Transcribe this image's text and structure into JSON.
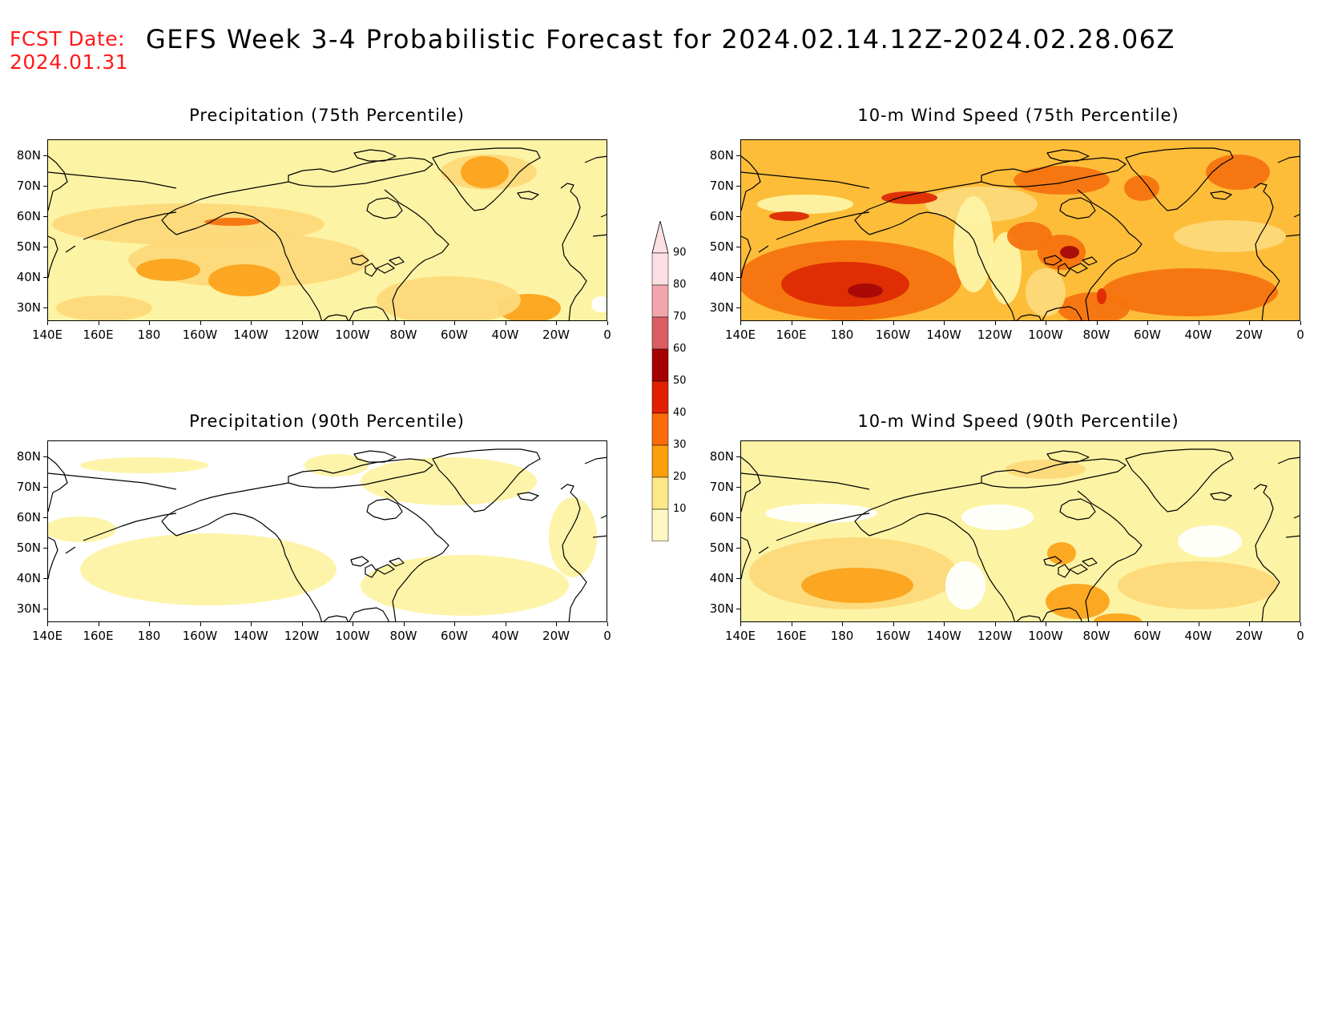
{
  "header": {
    "fcst_label": "FCST Date:",
    "fcst_date": "2024.01.31",
    "title": "GEFS Week 3-4 Probabilistic Forecast for 2024.02.14.12Z-2024.02.28.06Z"
  },
  "axes": {
    "lat_labels": [
      "80N",
      "70N",
      "60N",
      "50N",
      "40N",
      "30N"
    ],
    "lon_labels": [
      "140E",
      "160E",
      "180",
      "160W",
      "140W",
      "120W",
      "100W",
      "80W",
      "60W",
      "40W",
      "20W",
      "0"
    ]
  },
  "panels": [
    {
      "title": "Precipitation (75th Percentile)",
      "level": "moderate",
      "base": "#fdf3a4"
    },
    {
      "title": "10-m Wind Speed (75th Percentile)",
      "level": "high",
      "base": "#fdbd39"
    },
    {
      "title": "Precipitation (90th Percentile)",
      "level": "low",
      "base": "#ffffff"
    },
    {
      "title": "10-m Wind Speed (90th Percentile)",
      "level": "moderate-low",
      "base": "#fdf3a4"
    }
  ],
  "colorbar": {
    "labels": [
      "90",
      "80",
      "70",
      "60",
      "50",
      "40",
      "30",
      "20",
      "10"
    ],
    "colors": [
      "#fce0e3",
      "#f2a5ad",
      "#d95d63",
      "#a60000",
      "#e02000",
      "#fa6b0a",
      "#fb9f0c",
      "#fde888",
      "#fff8c4"
    ]
  },
  "colors": {
    "fcst_red": "#ff1a1a",
    "level_10_20": "#fdf3a4",
    "level_20_30": "#fdd97a",
    "level_30_40": "#fca31c",
    "level_40_50": "#f5730f",
    "level_50_60": "#dd2a04",
    "level_60_70": "#a50808"
  }
}
